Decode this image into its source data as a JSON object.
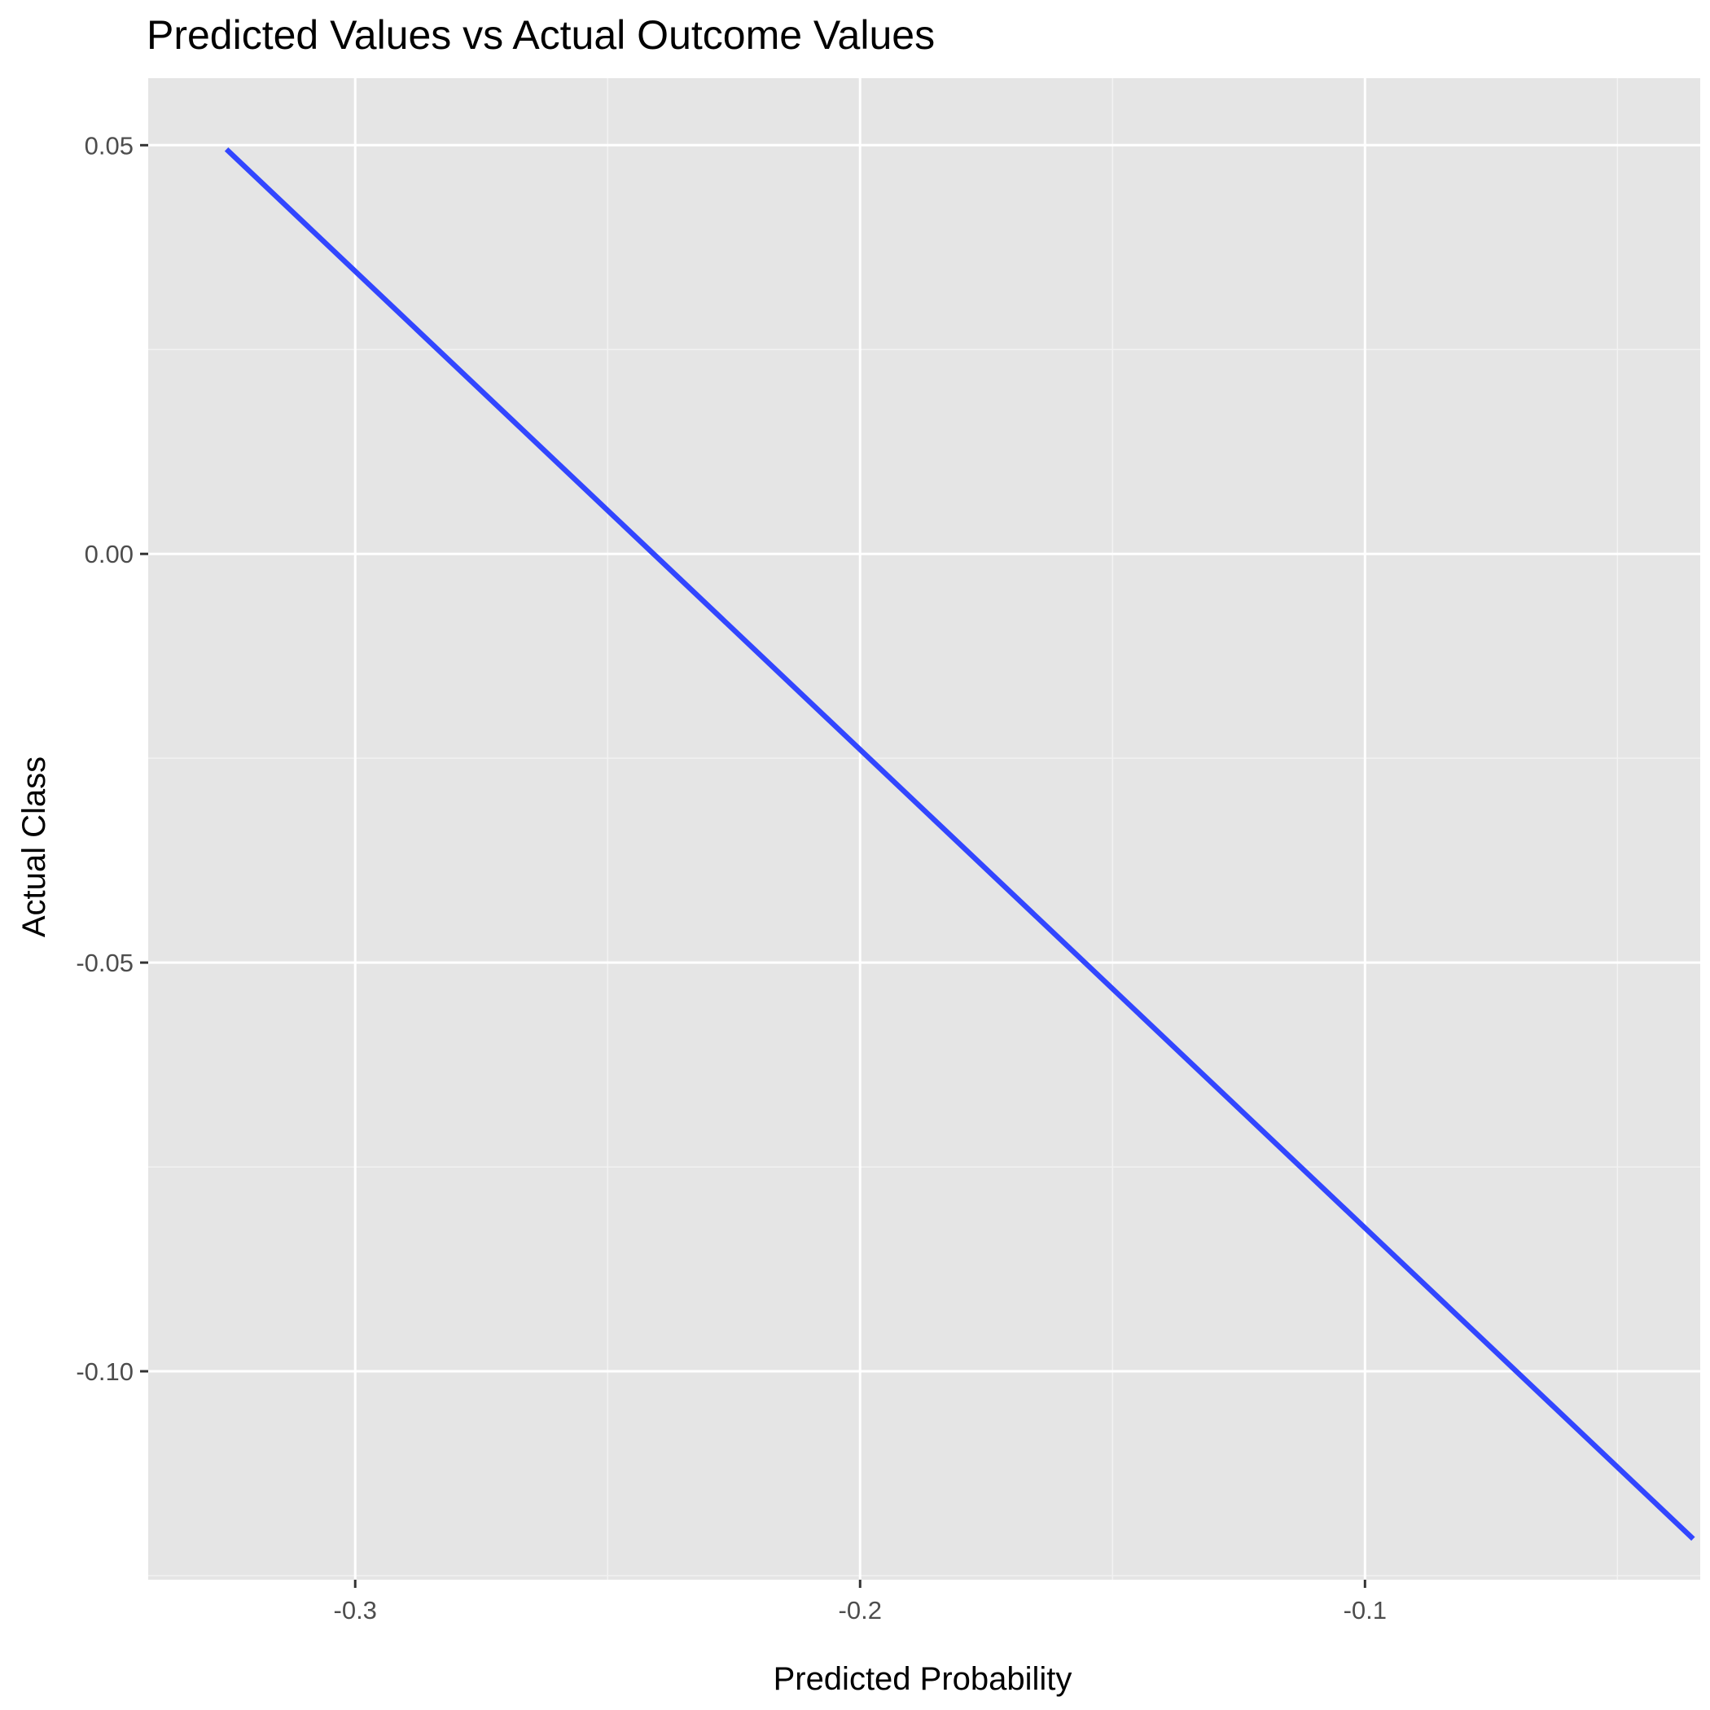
{
  "chart_data": {
    "type": "line",
    "title": "Predicted Values vs Actual Outcome Values",
    "xlabel": "Predicted Probability",
    "ylabel": "Actual Class",
    "xlim": [
      -0.341,
      -0.0336
    ],
    "ylim": [
      -0.1255,
      0.0582
    ],
    "x_ticks": [
      -0.3,
      -0.2,
      -0.1
    ],
    "x_tick_labels": [
      "-0.3",
      "-0.2",
      "-0.1"
    ],
    "x_minor_ticks": [
      -0.25,
      -0.15,
      -0.05
    ],
    "y_ticks": [
      -0.1,
      -0.05,
      0.0,
      0.05
    ],
    "y_tick_labels": [
      "-0.10",
      "-0.05",
      "0.00",
      "0.05"
    ],
    "y_minor_ticks": [
      -0.125,
      -0.075,
      -0.025,
      0.025
    ],
    "grid": true,
    "series": [
      {
        "x": [
          -0.3255,
          -0.035
        ],
        "y": [
          0.0495,
          -0.1205
        ],
        "color": "#3246ff"
      }
    ]
  },
  "colors": {
    "panel_background": "#e5e5e5",
    "grid_major": "#ffffff",
    "grid_minor": "#f2f2f2",
    "tick_mark": "#333333",
    "tick_label": "#4d4d4d"
  }
}
